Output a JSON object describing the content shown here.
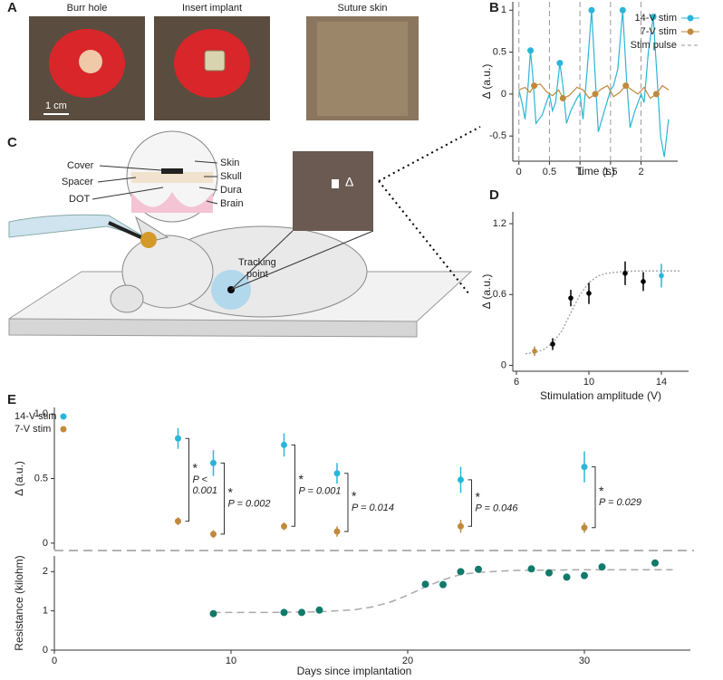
{
  "panel_labels": [
    "A",
    "B",
    "C",
    "D",
    "E"
  ],
  "photos": {
    "labels": [
      "Burr hole",
      "Insert implant",
      "Suture skin"
    ],
    "scale_bar": "1 cm"
  },
  "diagram": {
    "labels_left": [
      "Cover",
      "Spacer",
      "DOT"
    ],
    "labels_right": [
      "Skin",
      "Skull",
      "Dura",
      "Brain"
    ],
    "tracking_point": [
      "Tracking",
      "point"
    ],
    "inset_label": "Δ"
  },
  "chart_data": [
    {
      "type": "line",
      "xlabel": "Time (s)",
      "ylabel": "Δ (a.u.)",
      "xlim": [
        -0.1,
        2.6
      ],
      "ylim": [
        -0.8,
        1.1
      ],
      "xticks": [
        0,
        0.5,
        1,
        1.5,
        2
      ],
      "yticks": [
        -0.5,
        0,
        0.5,
        1
      ],
      "series": [
        {
          "name": "14-V stim",
          "color": "#29b6d8",
          "x": [
            0,
            0.05,
            0.1,
            0.15,
            0.19,
            0.23,
            0.28,
            0.33,
            0.38,
            0.45,
            0.5,
            0.55,
            0.6,
            0.67,
            0.72,
            0.78,
            0.85,
            0.95,
            1.0,
            1.05,
            1.12,
            1.19,
            1.25,
            1.3,
            1.4,
            1.5,
            1.55,
            1.62,
            1.7,
            1.76,
            1.82,
            1.9,
            2.0,
            2.05,
            2.12,
            2.2,
            2.27,
            2.32,
            2.38,
            2.45
          ],
          "values": [
            0.05,
            -0.1,
            -0.3,
            0.1,
            0.52,
            0.2,
            -0.35,
            -0.3,
            -0.25,
            -0.1,
            0.0,
            -0.2,
            -0.1,
            0.37,
            0.1,
            -0.35,
            -0.2,
            -0.05,
            0.0,
            -0.3,
            0.3,
            1.0,
            0.2,
            -0.45,
            -0.2,
            0.05,
            0.1,
            0.3,
            1.0,
            0.2,
            -0.4,
            -0.2,
            0.0,
            -0.1,
            0.5,
            0.92,
            0.1,
            -0.5,
            -0.75,
            -0.3
          ],
          "peak_x": [
            0.19,
            0.67,
            1.19,
            1.7,
            2.2
          ],
          "peak_values": [
            0.52,
            0.37,
            1.0,
            1.0,
            0.92
          ]
        },
        {
          "name": "7-V stim",
          "color": "#c08a3e",
          "x": [
            0,
            0.1,
            0.18,
            0.25,
            0.35,
            0.45,
            0.55,
            0.65,
            0.72,
            0.82,
            0.95,
            1.05,
            1.15,
            1.25,
            1.35,
            1.45,
            1.55,
            1.65,
            1.75,
            1.85,
            1.95,
            2.05,
            2.15,
            2.25,
            2.35,
            2.45
          ],
          "values": [
            0.05,
            0.08,
            0.02,
            0.1,
            0.12,
            0.03,
            -0.02,
            0.05,
            -0.05,
            -0.02,
            0.08,
            0.05,
            -0.05,
            0.0,
            0.06,
            0.1,
            -0.03,
            0.02,
            0.1,
            0.05,
            0.0,
            0.08,
            -0.05,
            0.0,
            0.1,
            0.05
          ],
          "peak_x": [
            0.25,
            0.72,
            1.25,
            1.75,
            2.25
          ],
          "peak_values": [
            0.1,
            -0.05,
            0.0,
            0.1,
            0.0
          ]
        }
      ],
      "stim_pulse": {
        "name": "Stim pulse",
        "x": [
          0,
          0.5,
          1,
          1.5,
          2
        ]
      }
    },
    {
      "type": "scatter",
      "xlabel": "Stimulation amplitude (V)",
      "ylabel": "Δ (a.u.)",
      "xlim": [
        5.8,
        15.5
      ],
      "ylim": [
        -0.05,
        1.3
      ],
      "xticks": [
        6,
        10,
        14
      ],
      "yticks": [
        0,
        0.6,
        1.2
      ],
      "x": [
        7,
        8,
        9,
        10,
        12,
        13,
        14
      ],
      "values": [
        0.12,
        0.18,
        0.57,
        0.61,
        0.78,
        0.71,
        0.76
      ],
      "errors": [
        0.04,
        0.05,
        0.07,
        0.09,
        0.1,
        0.08,
        0.1
      ],
      "colors": [
        "#c08a3e",
        "#000000",
        "#000000",
        "#000000",
        "#000000",
        "#000000",
        "#29b6d8"
      ],
      "fit": {
        "x": [
          6.5,
          7,
          7.5,
          8,
          8.5,
          9,
          9.5,
          10,
          10.5,
          11,
          12,
          13,
          14,
          15
        ],
        "values": [
          0.098,
          0.108,
          0.133,
          0.19,
          0.29,
          0.445,
          0.596,
          0.701,
          0.757,
          0.78,
          0.797,
          0.8,
          0.8,
          0.8
        ]
      }
    },
    {
      "type": "errorbar",
      "ylabel": "Δ (a.u.)",
      "xlim": [
        0,
        36
      ],
      "ylim": [
        -0.05,
        1.05
      ],
      "yticks": [
        0,
        0.5,
        {
          "value": 1,
          "label": "1.0"
        }
      ],
      "series": [
        {
          "name": "14-V stim",
          "color": "#29b6d8",
          "x": [
            7,
            9,
            13,
            16,
            23,
            30
          ],
          "values": [
            0.81,
            0.62,
            0.76,
            0.54,
            0.49,
            0.59
          ],
          "errors": [
            0.08,
            0.1,
            0.09,
            0.08,
            0.1,
            0.12
          ]
        },
        {
          "name": "7-V stim",
          "color": "#c08a3e",
          "x": [
            7,
            9,
            13,
            16,
            23,
            30
          ],
          "values": [
            0.17,
            0.07,
            0.13,
            0.09,
            0.13,
            0.12
          ],
          "errors": [
            0.03,
            0.03,
            0.03,
            0.04,
            0.05,
            0.04
          ]
        }
      ],
      "annotations": [
        {
          "x": 7,
          "lines": [
            "*",
            "P <",
            "0.001"
          ]
        },
        {
          "x": 9,
          "lines": [
            "*",
            "P = 0.002"
          ]
        },
        {
          "x": 13,
          "lines": [
            "*",
            "P = 0.001"
          ]
        },
        {
          "x": 16,
          "lines": [
            "*",
            "P = 0.014"
          ]
        },
        {
          "x": 23,
          "lines": [
            "*",
            "P = 0.046"
          ]
        },
        {
          "x": 30,
          "lines": [
            "*",
            "P = 0.029"
          ]
        }
      ]
    },
    {
      "type": "scatter",
      "xlabel": "Days since implantation",
      "ylabel": "Resistance (kilohm)",
      "xlim": [
        0,
        36
      ],
      "ylim": [
        0,
        2.4
      ],
      "xticks": [
        0,
        10,
        20,
        30
      ],
      "yticks": [
        0,
        1,
        2
      ],
      "x": [
        9,
        13,
        14,
        15,
        21,
        22,
        23,
        24,
        27,
        28,
        29,
        30,
        31,
        34
      ],
      "values": [
        0.93,
        0.96,
        0.96,
        1.02,
        1.68,
        1.67,
        2.0,
        2.06,
        2.07,
        1.97,
        1.86,
        1.9,
        2.12,
        2.22
      ],
      "color": "#117a6b",
      "fit": {
        "x": [
          9,
          12,
          15,
          17,
          18,
          19,
          20,
          21,
          22,
          23,
          24,
          26,
          30,
          35
        ],
        "values": [
          0.96,
          0.96,
          0.976,
          1.03,
          1.1,
          1.22,
          1.4,
          1.61,
          1.79,
          1.93,
          1.98,
          2.03,
          2.05,
          2.05
        ]
      }
    }
  ]
}
